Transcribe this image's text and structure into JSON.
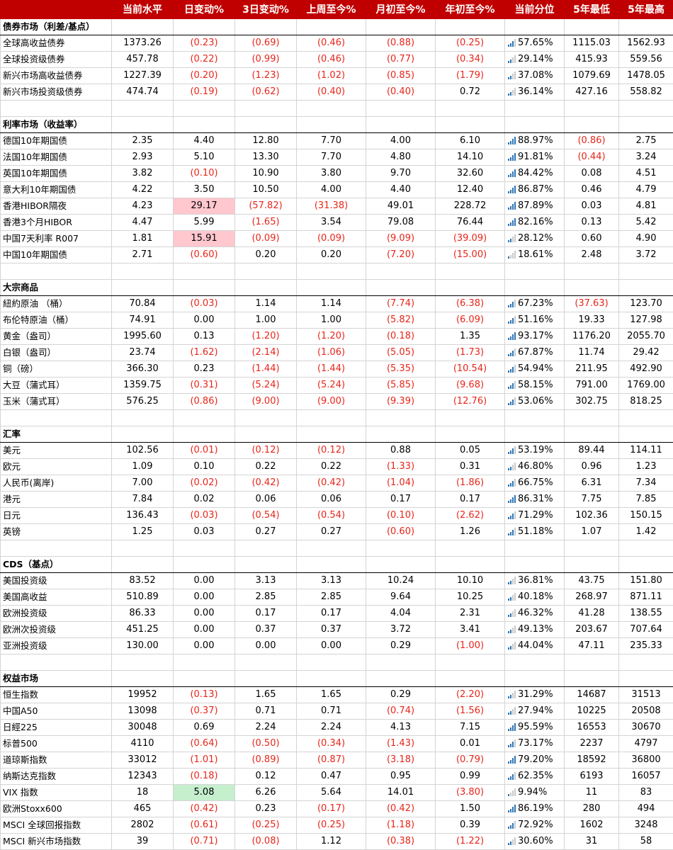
{
  "headers": [
    "",
    "当前水平",
    "日变动%",
    "3日变动%",
    "上周至今%",
    "月初至今%",
    "年初至今%",
    "当前分位",
    "5年最低",
    "5年最高"
  ],
  "sections": [
    {
      "title": "债券市场（利差/基点）",
      "rows": [
        {
          "name": "全球高收益债券",
          "cur": "1373.26",
          "d1": "(0.23)",
          "d3": "(0.69)",
          "wtd": "(0.46)",
          "mtd": "(0.88)",
          "ytd": "(0.25)",
          "pct": "57.65%",
          "low": "1115.03",
          "high": "1562.93",
          "hl": ""
        },
        {
          "name": "全球投资级债券",
          "cur": "457.78",
          "d1": "(0.22)",
          "d3": "(0.99)",
          "wtd": "(0.46)",
          "mtd": "(0.77)",
          "ytd": "(0.34)",
          "pct": "29.14%",
          "low": "415.93",
          "high": "559.56",
          "hl": ""
        },
        {
          "name": "新兴市场高收益债券",
          "cur": "1227.39",
          "d1": "(0.20)",
          "d3": "(1.23)",
          "wtd": "(1.02)",
          "mtd": "(0.85)",
          "ytd": "(1.79)",
          "pct": "37.08%",
          "low": "1079.69",
          "high": "1478.05",
          "hl": ""
        },
        {
          "name": "新兴市场投资级债券",
          "cur": "474.74",
          "d1": "(0.19)",
          "d3": "(0.62)",
          "wtd": "(0.40)",
          "mtd": "(0.40)",
          "ytd": "0.72",
          "pct": "36.14%",
          "low": "427.16",
          "high": "558.82",
          "hl": ""
        }
      ]
    },
    {
      "title": "利率市场（收益率）",
      "rows": [
        {
          "name": "德国10年期国债",
          "cur": "2.35",
          "d1": "4.40",
          "d3": "12.80",
          "wtd": "7.70",
          "mtd": "4.00",
          "ytd": "6.10",
          "pct": "88.97%",
          "low": "(0.86)",
          "high": "2.75",
          "hl": ""
        },
        {
          "name": "法国10年期国债",
          "cur": "2.93",
          "d1": "5.10",
          "d3": "13.30",
          "wtd": "7.70",
          "mtd": "4.80",
          "ytd": "14.10",
          "pct": "91.81%",
          "low": "(0.44)",
          "high": "3.24",
          "hl": ""
        },
        {
          "name": "英国10年期国债",
          "cur": "3.82",
          "d1": "(0.10)",
          "d3": "10.90",
          "wtd": "3.80",
          "mtd": "9.70",
          "ytd": "32.60",
          "pct": "84.42%",
          "low": "0.08",
          "high": "4.51",
          "hl": ""
        },
        {
          "name": "意大利10年期国债",
          "cur": "4.22",
          "d1": "3.50",
          "d3": "10.50",
          "wtd": "4.00",
          "mtd": "4.40",
          "ytd": "12.40",
          "pct": "86.87%",
          "low": "0.46",
          "high": "4.79",
          "hl": ""
        },
        {
          "name": "香港HIBOR隔夜",
          "cur": "4.23",
          "d1": "29.17",
          "d3": "(57.82)",
          "wtd": "(31.38)",
          "mtd": "49.01",
          "ytd": "228.72",
          "pct": "87.89%",
          "low": "0.03",
          "high": "4.81",
          "hl": "red"
        },
        {
          "name": "香港3个月HIBOR",
          "cur": "4.47",
          "d1": "5.99",
          "d3": "(1.65)",
          "wtd": "3.54",
          "mtd": "79.08",
          "ytd": "76.44",
          "pct": "82.16%",
          "low": "0.13",
          "high": "5.42",
          "hl": ""
        },
        {
          "name": "中国7天利率 R007",
          "cur": "1.81",
          "d1": "15.91",
          "d3": "(0.09)",
          "wtd": "(0.09)",
          "mtd": "(9.09)",
          "ytd": "(39.09)",
          "pct": "28.12%",
          "low": "0.60",
          "high": "4.90",
          "hl": "red"
        },
        {
          "name": "中国10年期国债",
          "cur": "2.71",
          "d1": "(0.60)",
          "d3": "0.20",
          "wtd": "0.20",
          "mtd": "(7.20)",
          "ytd": "(15.00)",
          "pct": "18.61%",
          "low": "2.48",
          "high": "3.72",
          "hl": ""
        }
      ]
    },
    {
      "title": "大宗商品",
      "rows": [
        {
          "name": "紐約原油 （桶）",
          "cur": "70.84",
          "d1": "(0.03)",
          "d3": "1.14",
          "wtd": "1.14",
          "mtd": "(7.74)",
          "ytd": "(6.38)",
          "pct": "67.23%",
          "low": "(37.63)",
          "high": "123.70",
          "hl": ""
        },
        {
          "name": "布伦特原油（桶）",
          "cur": "74.91",
          "d1": "0.00",
          "d3": "1.00",
          "wtd": "1.00",
          "mtd": "(5.82)",
          "ytd": "(6.09)",
          "pct": "51.16%",
          "low": "19.33",
          "high": "127.98",
          "hl": ""
        },
        {
          "name": "黄金（盎司）",
          "cur": "1995.60",
          "d1": "0.13",
          "d3": "(1.20)",
          "wtd": "(1.20)",
          "mtd": "(0.18)",
          "ytd": "1.35",
          "pct": "93.17%",
          "low": "1176.20",
          "high": "2055.70",
          "hl": ""
        },
        {
          "name": "白银（盎司）",
          "cur": "23.74",
          "d1": "(1.62)",
          "d3": "(2.14)",
          "wtd": "(1.06)",
          "mtd": "(5.05)",
          "ytd": "(1.73)",
          "pct": "67.87%",
          "low": "11.74",
          "high": "29.42",
          "hl": ""
        },
        {
          "name": "铜（磅）",
          "cur": "366.30",
          "d1": "0.23",
          "d3": "(1.44)",
          "wtd": "(1.44)",
          "mtd": "(5.35)",
          "ytd": "(10.54)",
          "pct": "54.94%",
          "low": "211.95",
          "high": "492.90",
          "hl": ""
        },
        {
          "name": "大豆（蒲式耳）",
          "cur": "1359.75",
          "d1": "(0.31)",
          "d3": "(5.24)",
          "wtd": "(5.24)",
          "mtd": "(5.85)",
          "ytd": "(9.68)",
          "pct": "58.15%",
          "low": "791.00",
          "high": "1769.00",
          "hl": ""
        },
        {
          "name": "玉米（蒲式耳）",
          "cur": "576.25",
          "d1": "(0.86)",
          "d3": "(9.00)",
          "wtd": "(9.00)",
          "mtd": "(9.39)",
          "ytd": "(12.76)",
          "pct": "53.06%",
          "low": "302.75",
          "high": "818.25",
          "hl": ""
        }
      ]
    },
    {
      "title": "汇率",
      "rows": [
        {
          "name": "美元",
          "cur": "102.56",
          "d1": "(0.01)",
          "d3": "(0.12)",
          "wtd": "(0.12)",
          "mtd": "0.88",
          "ytd": "0.05",
          "pct": "53.19%",
          "low": "89.44",
          "high": "114.11",
          "hl": ""
        },
        {
          "name": "欧元",
          "cur": "1.09",
          "d1": "0.10",
          "d3": "0.22",
          "wtd": "0.22",
          "mtd": "(1.33)",
          "ytd": "0.31",
          "pct": "46.80%",
          "low": "0.96",
          "high": "1.23",
          "hl": ""
        },
        {
          "name": "人民币(离岸)",
          "cur": "7.00",
          "d1": "(0.02)",
          "d3": "(0.42)",
          "wtd": "(0.42)",
          "mtd": "(1.04)",
          "ytd": "(1.86)",
          "pct": "66.75%",
          "low": "6.31",
          "high": "7.34",
          "hl": ""
        },
        {
          "name": "港元",
          "cur": "7.84",
          "d1": "0.02",
          "d3": "0.06",
          "wtd": "0.06",
          "mtd": "0.17",
          "ytd": "0.17",
          "pct": "86.31%",
          "low": "7.75",
          "high": "7.85",
          "hl": ""
        },
        {
          "name": "日元",
          "cur": "136.43",
          "d1": "(0.03)",
          "d3": "(0.54)",
          "wtd": "(0.54)",
          "mtd": "(0.10)",
          "ytd": "(2.62)",
          "pct": "71.29%",
          "low": "102.36",
          "high": "150.15",
          "hl": ""
        },
        {
          "name": "英镑",
          "cur": "1.25",
          "d1": "0.03",
          "d3": "0.27",
          "wtd": "0.27",
          "mtd": "(0.60)",
          "ytd": "1.26",
          "pct": "51.18%",
          "low": "1.07",
          "high": "1.42",
          "hl": ""
        }
      ]
    },
    {
      "title": "CDS（基点）",
      "rows": [
        {
          "name": "美国投资级",
          "cur": "83.52",
          "d1": "0.00",
          "d3": "3.13",
          "wtd": "3.13",
          "mtd": "10.24",
          "ytd": "10.10",
          "pct": "36.81%",
          "low": "43.75",
          "high": "151.80",
          "hl": ""
        },
        {
          "name": "美国高收益",
          "cur": "510.89",
          "d1": "0.00",
          "d3": "2.85",
          "wtd": "2.85",
          "mtd": "9.64",
          "ytd": "10.25",
          "pct": "40.18%",
          "low": "268.97",
          "high": "871.11",
          "hl": ""
        },
        {
          "name": "欧洲投资级",
          "cur": "86.33",
          "d1": "0.00",
          "d3": "0.17",
          "wtd": "0.17",
          "mtd": "4.04",
          "ytd": "2.31",
          "pct": "46.32%",
          "low": "41.28",
          "high": "138.55",
          "hl": ""
        },
        {
          "name": "欧洲次投资级",
          "cur": "451.25",
          "d1": "0.00",
          "d3": "0.37",
          "wtd": "0.37",
          "mtd": "3.72",
          "ytd": "3.41",
          "pct": "49.13%",
          "low": "203.67",
          "high": "707.64",
          "hl": ""
        },
        {
          "name": "亚洲投资级",
          "cur": "130.00",
          "d1": "0.00",
          "d3": "0.00",
          "wtd": "0.00",
          "mtd": "0.29",
          "ytd": "(1.00)",
          "pct": "44.04%",
          "low": "47.11",
          "high": "235.33",
          "hl": ""
        }
      ]
    },
    {
      "title": "权益市场",
      "rows": [
        {
          "name": "恒生指数",
          "cur": "19952",
          "d1": "(0.13)",
          "d3": "1.65",
          "wtd": "1.65",
          "mtd": "0.29",
          "ytd": "(2.20)",
          "pct": "31.29%",
          "low": "14687",
          "high": "31513",
          "hl": ""
        },
        {
          "name": "中国A50",
          "cur": "13098",
          "d1": "(0.37)",
          "d3": "0.71",
          "wtd": "0.71",
          "mtd": "(0.74)",
          "ytd": "(1.56)",
          "pct": "27.94%",
          "low": "10225",
          "high": "20508",
          "hl": ""
        },
        {
          "name": "日經225",
          "cur": "30048",
          "d1": "0.69",
          "d3": "2.24",
          "wtd": "2.24",
          "mtd": "4.13",
          "ytd": "7.15",
          "pct": "95.59%",
          "low": "16553",
          "high": "30670",
          "hl": ""
        },
        {
          "name": "标普500",
          "cur": "4110",
          "d1": "(0.64)",
          "d3": "(0.50)",
          "wtd": "(0.34)",
          "mtd": "(1.43)",
          "ytd": "0.01",
          "pct": "73.17%",
          "low": "2237",
          "high": "4797",
          "hl": ""
        },
        {
          "name": "道琼斯指数",
          "cur": "33012",
          "d1": "(1.01)",
          "d3": "(0.89)",
          "wtd": "(0.87)",
          "mtd": "(3.18)",
          "ytd": "(0.79)",
          "pct": "79.20%",
          "low": "18592",
          "high": "36800",
          "hl": ""
        },
        {
          "name": "纳斯达克指数",
          "cur": "12343",
          "d1": "(0.18)",
          "d3": "0.12",
          "wtd": "0.47",
          "mtd": "0.95",
          "ytd": "0.99",
          "pct": "62.35%",
          "low": "6193",
          "high": "16057",
          "hl": ""
        },
        {
          "name": "VIX 指数",
          "cur": "18",
          "d1": "5.08",
          "d3": "6.26",
          "wtd": "5.64",
          "mtd": "14.01",
          "ytd": "(3.80)",
          "pct": "9.94%",
          "low": "11",
          "high": "83",
          "hl": "green"
        },
        {
          "name": "欧洲Stoxx600",
          "cur": "465",
          "d1": "(0.42)",
          "d3": "0.23",
          "wtd": "(0.17)",
          "mtd": "(0.42)",
          "ytd": "1.50",
          "pct": "86.19%",
          "low": "280",
          "high": "494",
          "hl": ""
        },
        {
          "name": "MSCI 全球回报指数",
          "cur": "2802",
          "d1": "(0.61)",
          "d3": "(0.25)",
          "wtd": "(0.25)",
          "mtd": "(1.18)",
          "ytd": "0.39",
          "pct": "72.92%",
          "low": "1602",
          "high": "3248",
          "hl": ""
        },
        {
          "name": "MSCI 新兴市场指数",
          "cur": "39",
          "d1": "(0.71)",
          "d3": "(0.08)",
          "wtd": "1.12",
          "mtd": "(0.38)",
          "ytd": "(1.22)",
          "pct": "30.60%",
          "low": "31",
          "high": "58",
          "hl": ""
        }
      ]
    }
  ]
}
